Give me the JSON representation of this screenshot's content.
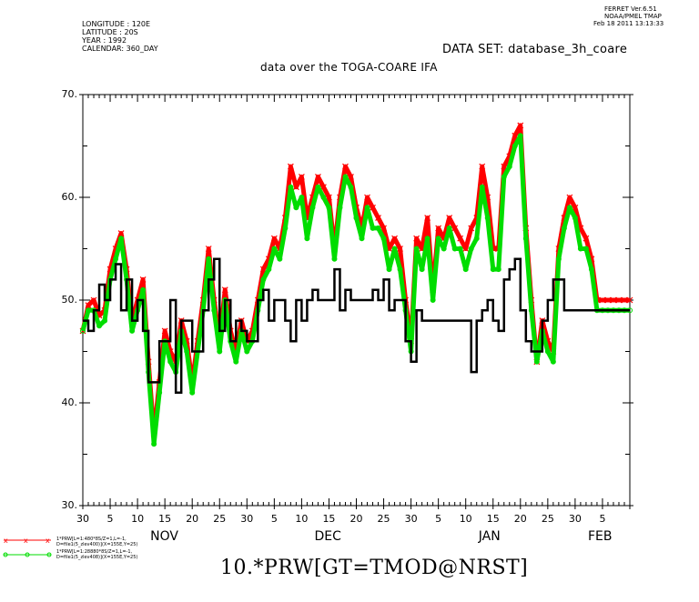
{
  "header": {
    "ferret_line1": "FERRET  Ver.6.51",
    "ferret_line2": "NOAA/PMEL TMAP",
    "ferret_line3": "Feb 18 2011 13:13:33",
    "longitude": "LONGITUDE : 120E",
    "latitude": "LATITUDE : 20S",
    "year": "YEAR : 1992",
    "calendar": "CALENDAR: 360_DAY",
    "dataset": "DATA SET: database_3h_coare",
    "subtitle": "data over the TOGA-COARE IFA"
  },
  "legend": [
    {
      "line1": "1*PRW[L=1:480*8S/Z=1,L=-1,",
      "line2": "D=file1(5_zlev400)](X=155E,Y=25)",
      "color": "#ff0000",
      "marker": "x"
    },
    {
      "line1": "1*PRW[L=1:28880*8S/Z=1,L=-1,",
      "line2": "D=file1(5_zlev408)](X=155E,Y=25)",
      "color": "#00dd00",
      "marker": "o"
    }
  ],
  "chart_data": {
    "type": "line",
    "title": "DATA SET: database_3h_coare",
    "subtitle": "data over the TOGA-COARE IFA",
    "xlabel": "10.*PRW[GT=TMOD@NRST]",
    "ylabel": "",
    "ylim": [
      30,
      70
    ],
    "xlim": [
      0,
      100
    ],
    "yticks": [
      "30.",
      "40.",
      "50.",
      "60.",
      "70."
    ],
    "yticks_values": [
      30,
      40,
      50,
      60,
      70
    ],
    "xticks": [
      "30",
      "5",
      "10",
      "15",
      "20",
      "25",
      "30",
      "5",
      "10",
      "15",
      "20",
      "25",
      "30",
      "5",
      "10",
      "15",
      "20",
      "25",
      "30",
      "5"
    ],
    "xticks_values": [
      0,
      5,
      10,
      15,
      20,
      25,
      30,
      35,
      40,
      45,
      50,
      55,
      60,
      65,
      70,
      75,
      80,
      85,
      90,
      95
    ],
    "months": [
      {
        "label": "NOV",
        "x": 15
      },
      {
        "label": "DEC",
        "x": 45
      },
      {
        "label": "JAN",
        "x": 75
      },
      {
        "label": "FEB",
        "x": 95
      }
    ],
    "grid": false,
    "series": [
      {
        "name": "1*PRW[L=1:480*8S/Z=1,L=-1,D=file1(5_zlev400)](X=155E,Y=25)",
        "color": "#ff0000",
        "marker": "x",
        "x": [
          0,
          1,
          2,
          3,
          4,
          5,
          6,
          7,
          8,
          9,
          10,
          11,
          12,
          13,
          14,
          15,
          16,
          17,
          18,
          19,
          20,
          21,
          22,
          23,
          24,
          25,
          26,
          27,
          28,
          29,
          30,
          31,
          32,
          33,
          34,
          35,
          36,
          37,
          38,
          39,
          40,
          41,
          42,
          43,
          44,
          45,
          46,
          47,
          48,
          49,
          50,
          51,
          52,
          53,
          54,
          55,
          56,
          57,
          58,
          59,
          60,
          61,
          62,
          63,
          64,
          65,
          66,
          67,
          68,
          69,
          70,
          71,
          72,
          73,
          74,
          75,
          76,
          77,
          78,
          79,
          80,
          81,
          82,
          83,
          84,
          85,
          86,
          87,
          88,
          89,
          90,
          91,
          92,
          93,
          94,
          95,
          96,
          97,
          98,
          99,
          100
        ],
        "y": [
          47,
          49.5,
          50,
          48.5,
          49,
          53,
          55,
          56.5,
          53,
          48,
          50,
          52,
          44,
          37,
          42,
          47,
          45,
          44,
          48,
          46,
          42,
          46,
          50,
          55,
          50,
          46,
          51,
          47,
          45,
          48,
          46,
          47,
          50,
          53,
          54,
          56,
          55,
          58,
          63,
          61,
          62,
          58,
          60,
          62,
          61,
          60,
          55,
          60,
          63,
          62,
          59,
          57,
          60,
          59,
          58,
          57,
          55,
          56,
          55,
          50,
          46,
          56,
          55,
          58,
          51,
          57,
          56,
          58,
          57,
          56,
          55,
          57,
          58,
          63,
          60,
          55,
          55,
          63,
          64,
          66,
          67,
          57,
          50,
          44,
          48,
          46,
          45,
          55,
          58,
          60,
          59,
          57,
          56,
          54,
          50,
          50,
          50,
          50,
          50,
          50,
          50
        ]
      },
      {
        "name": "1*PRW[L=1:28880*8S/Z=1,L=-1,D=file1(5_zlev408)](X=155E,Y=25)",
        "color": "#00dd00",
        "marker": "o",
        "x": [
          0,
          1,
          2,
          3,
          4,
          5,
          6,
          7,
          8,
          9,
          10,
          11,
          12,
          13,
          14,
          15,
          16,
          17,
          18,
          19,
          20,
          21,
          22,
          23,
          24,
          25,
          26,
          27,
          28,
          29,
          30,
          31,
          32,
          33,
          34,
          35,
          36,
          37,
          38,
          39,
          40,
          41,
          42,
          43,
          44,
          45,
          46,
          47,
          48,
          49,
          50,
          51,
          52,
          53,
          54,
          55,
          56,
          57,
          58,
          59,
          60,
          61,
          62,
          63,
          64,
          65,
          66,
          67,
          68,
          69,
          70,
          71,
          72,
          73,
          74,
          75,
          76,
          77,
          78,
          79,
          80,
          81,
          82,
          83,
          84,
          85,
          86,
          87,
          88,
          89,
          90,
          91,
          92,
          93,
          94,
          95,
          96,
          97,
          98,
          99,
          100
        ],
        "y": [
          47,
          49,
          49,
          47.5,
          48,
          52,
          54,
          56,
          52,
          47,
          49,
          51,
          43,
          36,
          41,
          46,
          44,
          43,
          47,
          45,
          41,
          45,
          49,
          54,
          49,
          45,
          50,
          46,
          44,
          47,
          45,
          46,
          49,
          52,
          53,
          55,
          54,
          57,
          61,
          59,
          60,
          56,
          59,
          61,
          60,
          59,
          54,
          59,
          62,
          61,
          58,
          56,
          59,
          57,
          57,
          56,
          53,
          55,
          53,
          49,
          45,
          55,
          53,
          56,
          50,
          56,
          55,
          57,
          55,
          55,
          53,
          55,
          56,
          61,
          58,
          53,
          53,
          62,
          63,
          65,
          66,
          56,
          49,
          44,
          47,
          45,
          44,
          54,
          57,
          59,
          58,
          55,
          55,
          53,
          49,
          49,
          49,
          49,
          49,
          49,
          49
        ]
      },
      {
        "name": "",
        "color": "#000000",
        "marker": "none",
        "x": [
          0,
          1,
          2,
          3,
          4,
          5,
          6,
          7,
          8,
          9,
          10,
          11,
          12,
          13,
          14,
          15,
          16,
          17,
          18,
          19,
          20,
          21,
          22,
          23,
          24,
          25,
          26,
          27,
          28,
          29,
          30,
          31,
          32,
          33,
          34,
          35,
          36,
          37,
          38,
          39,
          40,
          41,
          42,
          43,
          44,
          45,
          46,
          47,
          48,
          49,
          50,
          51,
          52,
          53,
          54,
          55,
          56,
          57,
          58,
          59,
          60,
          61,
          62,
          63,
          64,
          65,
          66,
          67,
          68,
          69,
          70,
          71,
          72,
          73,
          74,
          75,
          76,
          77,
          78,
          79,
          80,
          81,
          82,
          83,
          84,
          85,
          86,
          87,
          88,
          89,
          90,
          91,
          92,
          93,
          94,
          95,
          96,
          97,
          98,
          99,
          100
        ],
        "y": [
          48,
          47,
          49,
          51.5,
          50,
          52,
          53.5,
          49,
          52,
          48,
          50,
          47,
          42,
          42,
          46,
          46,
          50,
          41,
          48,
          48,
          45,
          45,
          49,
          52,
          54,
          47,
          50,
          46,
          48,
          47,
          46,
          46,
          50,
          51,
          48,
          50,
          50,
          48,
          46,
          50,
          48,
          50,
          51,
          50,
          50,
          50,
          53,
          49,
          51,
          50,
          50,
          50,
          50,
          51,
          50,
          52,
          49,
          50,
          50,
          46,
          44,
          49,
          48,
          48,
          48,
          48,
          48,
          48,
          48,
          48,
          48,
          43,
          48,
          49,
          50,
          48,
          47,
          52,
          53,
          54,
          49,
          46,
          45,
          45,
          48,
          50,
          52,
          52,
          49,
          49,
          49,
          49,
          49,
          49,
          49,
          49,
          49,
          49,
          49,
          49,
          49
        ]
      }
    ]
  },
  "footer": {
    "xlabel": "10.*PRW[GT=TMOD@NRST]"
  }
}
